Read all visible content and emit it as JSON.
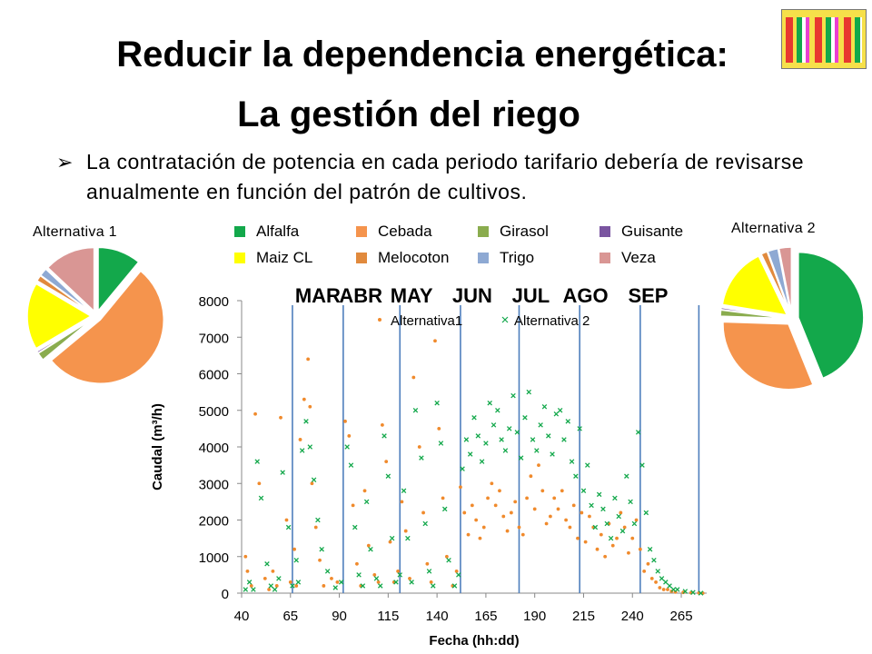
{
  "title_line1": "Reducir la dependencia energética:",
  "title_line2": "La gestión del riego",
  "bullet_text": "La contratación de potencia en cada periodo tarifario debería de revisarse anualmente en función del patrón de cultivos.",
  "alt1_label": "Alternativa 1",
  "alt2_label": "Alternativa 2",
  "colors": {
    "Alfalfa": "#13a84b",
    "Cebada": "#f5944d",
    "Girasol": "#8aac4e",
    "Guisante": "#7a55a0",
    "Maiz CL": "#ffff00",
    "Melocoton": "#e18a3d",
    "Trigo": "#8ea9d3",
    "Veza": "#d99694",
    "month_line": "#4f7fbd",
    "alt1_marker": "#f08a2c",
    "alt2_marker": "#13a84b"
  },
  "legend": [
    "Alfalfa",
    "Cebada",
    "Girasol",
    "Guisante",
    "Maiz CL",
    "Melocoton",
    "Trigo",
    "Veza"
  ],
  "chart_data": [
    {
      "type": "pie",
      "name": "Alternativa 1",
      "categories": [
        "Alfalfa",
        "Cebada",
        "Girasol",
        "Guisante",
        "Maiz CL",
        "Melocoton",
        "Trigo",
        "Veza"
      ],
      "values": [
        11,
        53,
        2,
        0.5,
        17,
        1.5,
        2,
        13
      ]
    },
    {
      "type": "pie",
      "name": "Alternativa 2",
      "categories": [
        "Alfalfa",
        "Cebada",
        "Girasol",
        "Guisante",
        "Maiz CL",
        "Melocoton",
        "Trigo",
        "Veza"
      ],
      "values": [
        43,
        31,
        1.5,
        0.5,
        15,
        1.5,
        2.5,
        3
      ]
    },
    {
      "type": "scatter",
      "xlabel": "Fecha (hh:dd)",
      "ylabel": "Caudal (m³/h)",
      "xlim": [
        40,
        278
      ],
      "ylim": [
        0,
        8000
      ],
      "xticks": [
        40,
        65,
        90,
        115,
        140,
        165,
        190,
        215,
        240,
        265
      ],
      "yticks": [
        0,
        1000,
        2000,
        3000,
        4000,
        5000,
        6000,
        7000,
        8000
      ],
      "grid": false,
      "legend_position": "top",
      "month_boundaries": [
        66,
        92,
        121,
        152,
        182,
        213,
        244,
        274
      ],
      "months": [
        {
          "label": "MAR",
          "x": 79
        },
        {
          "label": "ABR",
          "x": 101
        },
        {
          "label": "MAY",
          "x": 127
        },
        {
          "label": "JUN",
          "x": 158
        },
        {
          "label": "JUL",
          "x": 188
        },
        {
          "label": "AGO",
          "x": 216
        },
        {
          "label": "SEP",
          "x": 248
        }
      ],
      "series_legend": [
        "Alternativa1",
        "Alternativa 2"
      ],
      "series": [
        {
          "name": "Alternativa1",
          "marker": "dot",
          "x": [
            42,
            43,
            45,
            47,
            49,
            52,
            54,
            56,
            58,
            60,
            63,
            65,
            67,
            68,
            70,
            72,
            74,
            75,
            76,
            78,
            80,
            82,
            86,
            89,
            93,
            95,
            97,
            99,
            101,
            103,
            105,
            108,
            110,
            112,
            114,
            116,
            118,
            120,
            122,
            124,
            126,
            128,
            131,
            133,
            135,
            137,
            139,
            141,
            143,
            145,
            148,
            150,
            152,
            154,
            156,
            158,
            160,
            162,
            164,
            166,
            168,
            170,
            172,
            174,
            176,
            178,
            180,
            182,
            184,
            186,
            188,
            190,
            192,
            194,
            196,
            198,
            200,
            202,
            204,
            206,
            208,
            210,
            212,
            214,
            216,
            218,
            220,
            222,
            224,
            226,
            228,
            230,
            232,
            234,
            236,
            238,
            240,
            242,
            244,
            246,
            248,
            250,
            252,
            254,
            256,
            258,
            260,
            262,
            266,
            270,
            274,
            276
          ],
          "y": [
            1000,
            600,
            200,
            4900,
            3000,
            400,
            100,
            600,
            200,
            4800,
            2000,
            300,
            1200,
            200,
            4200,
            5300,
            6400,
            5100,
            3000,
            1800,
            900,
            200,
            400,
            300,
            4700,
            4300,
            2400,
            800,
            200,
            2800,
            1300,
            500,
            300,
            4600,
            3600,
            1400,
            300,
            600,
            2500,
            1700,
            400,
            5900,
            4000,
            2200,
            800,
            300,
            6900,
            4500,
            2600,
            1000,
            200,
            600,
            2900,
            2200,
            1600,
            2400,
            2000,
            1500,
            1800,
            2600,
            3000,
            2400,
            2800,
            2100,
            1700,
            2200,
            2500,
            1800,
            1600,
            2600,
            3200,
            2300,
            3500,
            2800,
            1900,
            2100,
            2600,
            2300,
            2800,
            2000,
            1800,
            2400,
            1500,
            2200,
            1400,
            2100,
            1800,
            1200,
            1600,
            1000,
            1900,
            1300,
            1500,
            2200,
            1800,
            1100,
            1500,
            2000,
            1200,
            600,
            800,
            400,
            300,
            150,
            100,
            100,
            50,
            30,
            20,
            10,
            5,
            0
          ]
        },
        {
          "name": "Alternativa 2",
          "marker": "x",
          "x": [
            42,
            44,
            46,
            48,
            50,
            53,
            55,
            57,
            59,
            61,
            64,
            66,
            68,
            69,
            71,
            73,
            75,
            77,
            79,
            81,
            84,
            88,
            91,
            94,
            96,
            98,
            100,
            102,
            104,
            106,
            109,
            111,
            113,
            115,
            117,
            119,
            121,
            123,
            125,
            127,
            129,
            132,
            134,
            136,
            138,
            140,
            142,
            144,
            146,
            149,
            151,
            153,
            155,
            157,
            159,
            161,
            163,
            165,
            167,
            169,
            171,
            173,
            175,
            177,
            179,
            181,
            183,
            185,
            187,
            189,
            191,
            193,
            195,
            197,
            199,
            201,
            203,
            205,
            207,
            209,
            211,
            213,
            215,
            217,
            219,
            221,
            223,
            225,
            227,
            229,
            231,
            233,
            235,
            237,
            239,
            241,
            243,
            245,
            247,
            249,
            251,
            253,
            255,
            257,
            259,
            261,
            263,
            267,
            271,
            275
          ],
          "y": [
            100,
            300,
            100,
            3600,
            2600,
            800,
            200,
            100,
            400,
            3300,
            1800,
            200,
            900,
            300,
            3900,
            4700,
            4000,
            3100,
            2000,
            1200,
            600,
            150,
            300,
            4000,
            3500,
            1800,
            500,
            200,
            2500,
            1200,
            400,
            200,
            4300,
            3200,
            1500,
            300,
            500,
            2800,
            1500,
            300,
            5000,
            3700,
            1900,
            600,
            200,
            5200,
            4100,
            2300,
            900,
            200,
            500,
            3400,
            4200,
            3800,
            4800,
            4300,
            3600,
            4100,
            5200,
            4600,
            5000,
            4200,
            3900,
            4500,
            5400,
            4400,
            3700,
            4800,
            5500,
            4200,
            3900,
            4600,
            5100,
            4300,
            3800,
            4900,
            5000,
            4200,
            4700,
            3600,
            3200,
            4500,
            2800,
            3500,
            2400,
            1800,
            2700,
            2300,
            1900,
            1500,
            2600,
            2100,
            1700,
            3200,
            2500,
            1900,
            4400,
            3500,
            2200,
            1200,
            900,
            600,
            400,
            300,
            200,
            100,
            100,
            50,
            20,
            0
          ]
        }
      ]
    }
  ]
}
